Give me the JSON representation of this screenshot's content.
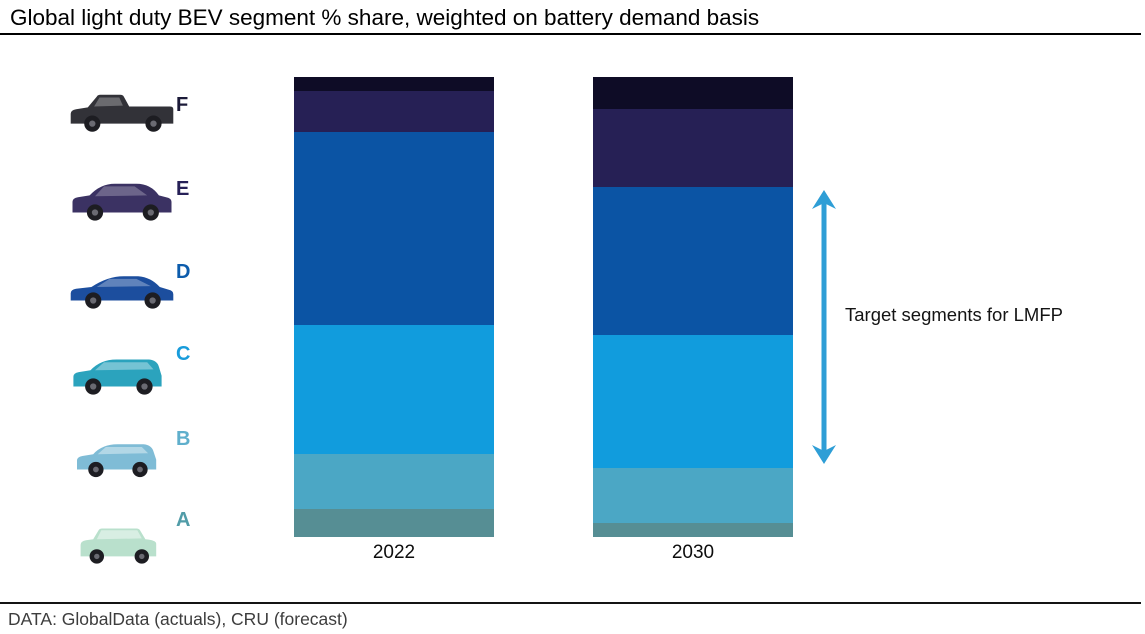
{
  "title": "Global light duty BEV segment % share, weighted on battery demand basis",
  "footer": {
    "text": "DATA: GlobalData (actuals), CRU (forecast)"
  },
  "annotation": {
    "label": "Target segments for LMFP",
    "arrow_color": "#2e9ed6"
  },
  "legend": {
    "items": [
      {
        "label": "F",
        "letter_color": "#1b1a38",
        "icon": "pickup-truck-icon",
        "vehicle_color": "#323238"
      },
      {
        "label": "E",
        "letter_color": "#262057",
        "icon": "suv-icon",
        "vehicle_color": "#3b3263"
      },
      {
        "label": "D",
        "letter_color": "#0c5cac",
        "icon": "sedan-icon",
        "vehicle_color": "#1c4e9e"
      },
      {
        "label": "C",
        "letter_color": "#189cdb",
        "icon": "hatchback-icon",
        "vehicle_color": "#2ba3bd"
      },
      {
        "label": "B",
        "letter_color": "#5fafcc",
        "icon": "compact-car-icon",
        "vehicle_color": "#7fbcd6"
      },
      {
        "label": "A",
        "letter_color": "#519ca8",
        "icon": "mini-car-icon",
        "vehicle_color": "#b9e0cc"
      }
    ]
  },
  "chart_data": {
    "type": "bar",
    "stacked": true,
    "title": "Global light duty BEV segment % share, weighted on battery demand basis",
    "categories": [
      "2022",
      "2030"
    ],
    "unit": "%",
    "ylim": [
      0,
      100
    ],
    "grid": false,
    "legend_position": "left (vehicle segment icons A–F)",
    "series": [
      {
        "name": "A",
        "color": "#568e94",
        "values": [
          6,
          3
        ]
      },
      {
        "name": "B",
        "color": "#4ba7c5",
        "values": [
          12,
          12
        ]
      },
      {
        "name": "C",
        "color": "#119cdd",
        "values": [
          28,
          29
        ]
      },
      {
        "name": "D",
        "color": "#0b54a4",
        "values": [
          42,
          32
        ]
      },
      {
        "name": "E",
        "color": "#262055",
        "values": [
          9,
          17
        ]
      },
      {
        "name": "F",
        "color": "#0e0c26",
        "values": [
          3,
          7
        ]
      }
    ]
  }
}
